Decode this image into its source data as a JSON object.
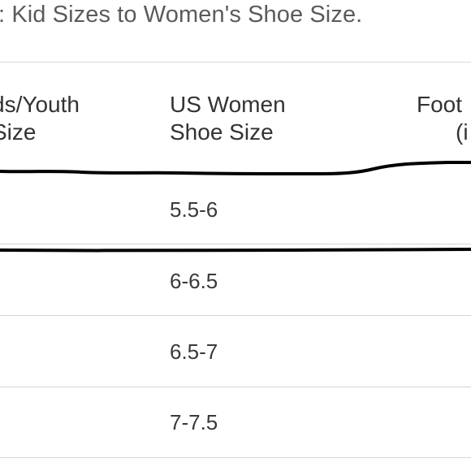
{
  "title": ": Kid Sizes to Women's Shoe Size.",
  "table": {
    "headers": {
      "kids_line1": "ds/Youth",
      "kids_line2": "Size",
      "women_line1": "US Women",
      "women_line2": "Shoe Size",
      "foot_line1": "Foot",
      "foot_line2": "(i"
    },
    "rows": [
      {
        "women": "5.5-6"
      },
      {
        "women": "6-6.5"
      },
      {
        "women": "6.5-7"
      },
      {
        "women": "7-7.5"
      }
    ]
  },
  "colors": {
    "title": "#5b5b5b",
    "rule": "#d4d4d4",
    "marker": "#000000"
  }
}
